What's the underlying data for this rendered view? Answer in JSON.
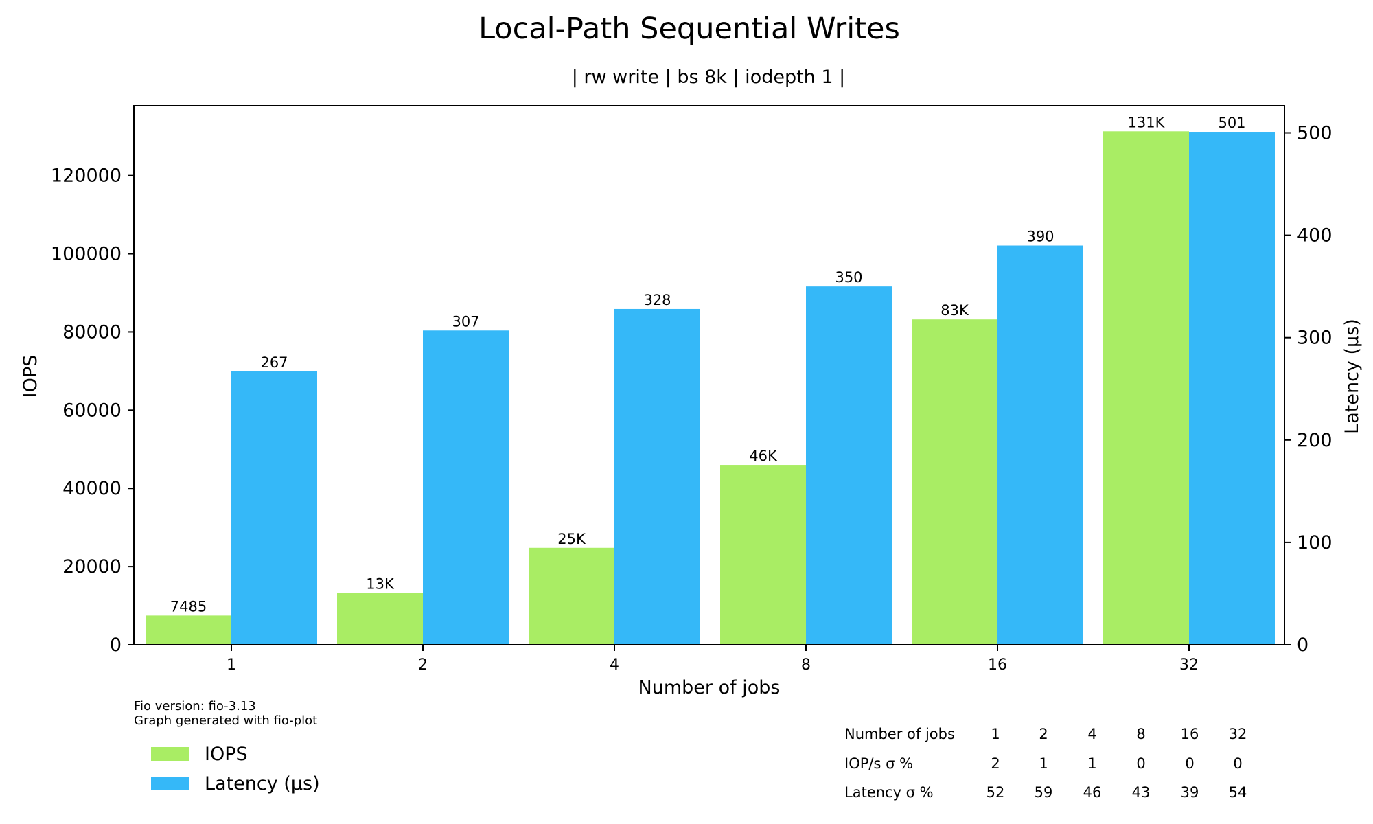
{
  "chart_data": {
    "type": "bar",
    "title": "Local-Path Sequential Writes",
    "subtitle": "| rw write | bs 8k | iodepth 1 |",
    "xlabel": "Number of jobs",
    "ylabel": "IOPS",
    "y2label": "Latency (µs)",
    "categories": [
      "1",
      "2",
      "4",
      "8",
      "16",
      "32"
    ],
    "ylim": [
      0,
      137850
    ],
    "y2lim": [
      0,
      526.5
    ],
    "yticks": [
      0,
      20000,
      40000,
      60000,
      80000,
      100000,
      120000
    ],
    "y2ticks": [
      0,
      100,
      200,
      300,
      400,
      500
    ],
    "grid": false,
    "legend_position": "bottom-left",
    "series": [
      {
        "name": "IOPS",
        "axis": "left",
        "color": "#a9ed64",
        "values": [
          7485,
          13300,
          24800,
          46000,
          83200,
          131300
        ],
        "labels": [
          "7485",
          "13K",
          "25K",
          "46K",
          "83K",
          "131K"
        ]
      },
      {
        "name": "Latency (µs)",
        "axis": "right",
        "color": "#35b8f8",
        "values": [
          267,
          307,
          328,
          350,
          390,
          501
        ],
        "labels": [
          "267",
          "307",
          "328",
          "350",
          "390",
          "501"
        ]
      }
    ]
  },
  "footnote": {
    "line1": "Fio version: fio-3.13",
    "line2": "Graph generated with fio-plot"
  },
  "stats_table": {
    "rows": [
      {
        "label": "Number of jobs",
        "values": [
          "1",
          "2",
          "4",
          "8",
          "16",
          "32"
        ]
      },
      {
        "label": "IOP/s σ %",
        "values": [
          "2",
          "1",
          "1",
          "0",
          "0",
          "0"
        ]
      },
      {
        "label": "Latency σ %",
        "values": [
          "52",
          "59",
          "46",
          "43",
          "39",
          "54"
        ]
      }
    ]
  }
}
